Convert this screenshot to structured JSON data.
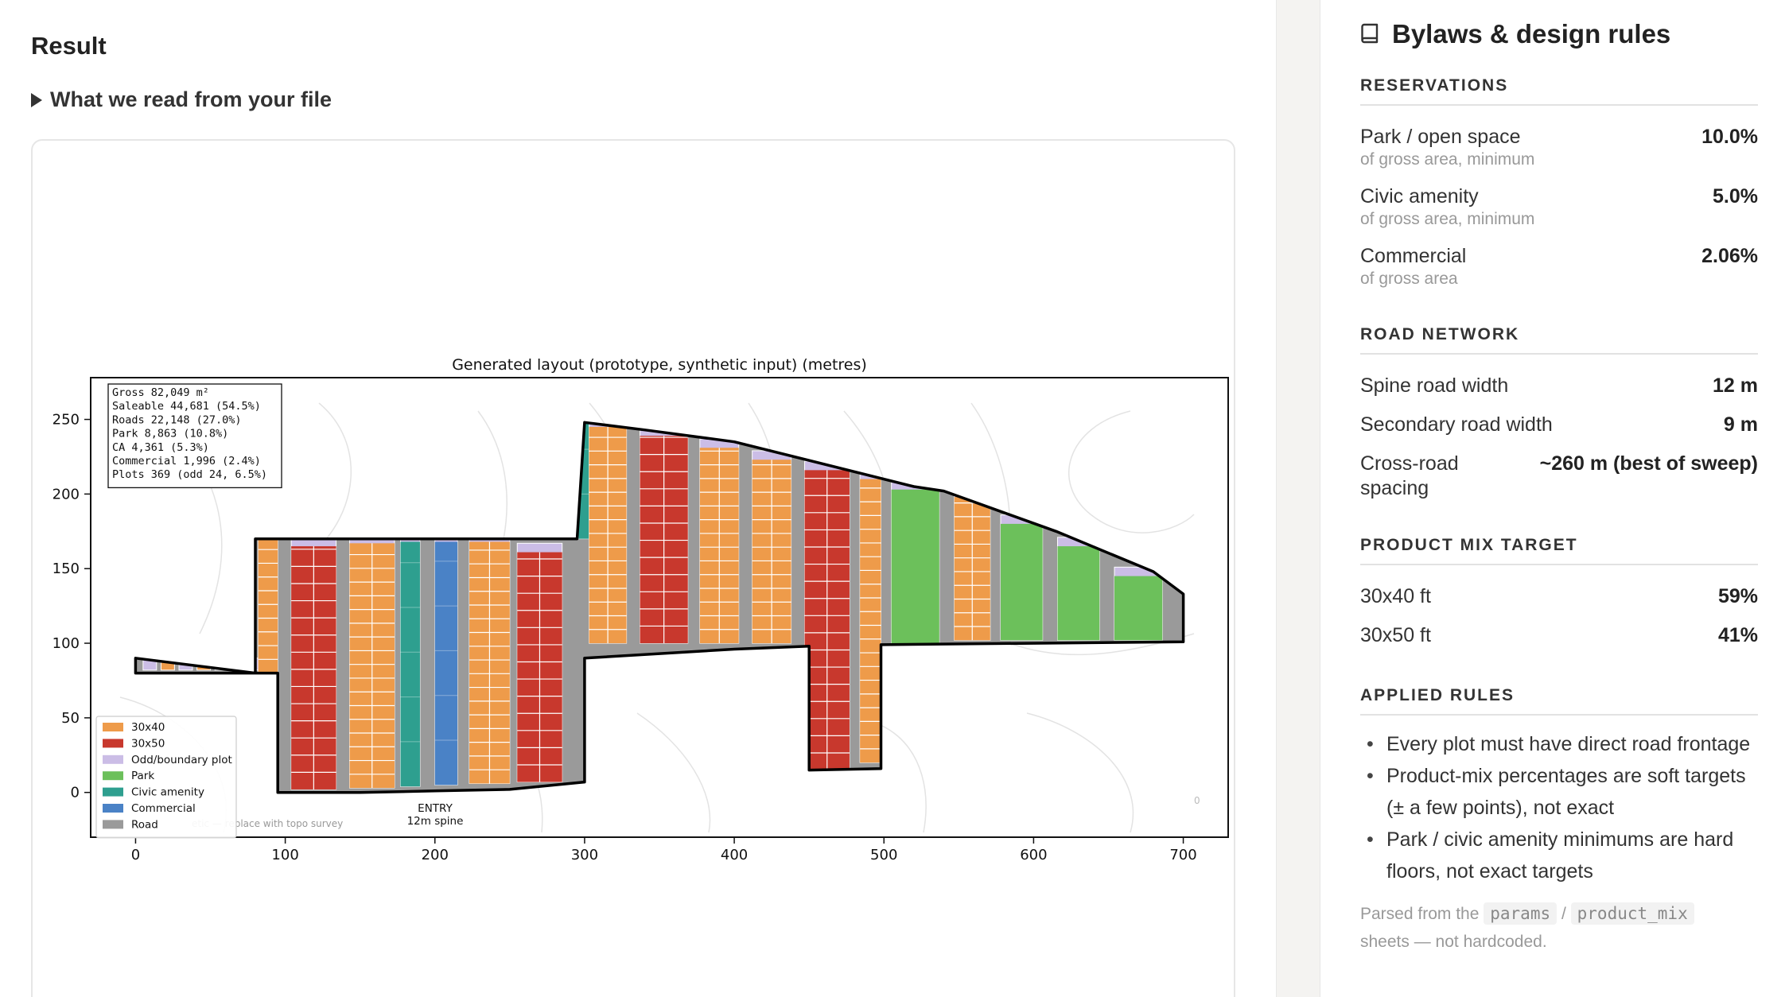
{
  "main": {
    "title": "Result",
    "expander_label": "What we read from your file"
  },
  "figure": {
    "title": "Generated layout (prototype, synthetic input)  (metres)",
    "stats": [
      "Gross 82,049 m²",
      "Saleable 44,681 (54.5%)",
      "Roads 22,148 (27.0%)",
      "Park 8,863 (10.8%)",
      "CA 4,361 (5.3%)",
      "Commercial 1,996 (2.4%)",
      "Plots 369 (odd 24, 6.5%)"
    ],
    "legend": [
      {
        "label": "30x40",
        "color": "#ee9b4a"
      },
      {
        "label": "30x50",
        "color": "#c8382d"
      },
      {
        "label": "Odd/boundary plot",
        "color": "#cbbde6"
      },
      {
        "label": "Park",
        "color": "#6cc05b"
      },
      {
        "label": "Civic amenity",
        "color": "#2e9f8f"
      },
      {
        "label": "Commercial",
        "color": "#4a82c6"
      },
      {
        "label": "Road",
        "color": "#9a9a9a"
      }
    ],
    "entry_label": [
      "ENTRY",
      "12m spine"
    ],
    "contour_note": "etic — replace with topo survey",
    "contour_tick": "0"
  },
  "chart_data": {
    "type": "map",
    "title": "Generated layout (prototype, synthetic input)  (metres)",
    "xlim": [
      -30,
      730
    ],
    "ylim": [
      -30,
      278
    ],
    "xticks": [
      0,
      100,
      200,
      300,
      400,
      500,
      600,
      700
    ],
    "yticks": [
      0,
      50,
      100,
      150,
      200,
      250
    ],
    "boundary": [
      [
        0,
        90
      ],
      [
        0,
        80
      ],
      [
        95,
        80
      ],
      [
        95,
        0
      ],
      [
        150,
        0
      ],
      [
        200,
        1
      ],
      [
        250,
        2
      ],
      [
        300,
        7
      ],
      [
        300,
        90
      ],
      [
        400,
        96
      ],
      [
        450,
        98
      ],
      [
        450,
        15
      ],
      [
        498,
        16
      ],
      [
        498,
        99
      ],
      [
        700,
        101
      ],
      [
        700,
        133
      ],
      [
        680,
        148
      ],
      [
        615,
        175
      ],
      [
        540,
        202
      ],
      [
        520,
        205
      ],
      [
        400,
        235
      ],
      [
        340,
        243
      ],
      [
        300,
        248
      ],
      [
        295,
        170
      ],
      [
        80,
        170
      ],
      [
        80,
        80
      ],
      [
        0,
        90
      ]
    ],
    "strips": [
      {
        "x": 82,
        "w": 13,
        "y0": 80,
        "y1": 170,
        "type": "30x40"
      },
      {
        "x": 104,
        "w": 30,
        "y0": 2,
        "y1": 165,
        "type": "30x50"
      },
      {
        "x": 143,
        "w": 30,
        "y0": 3,
        "y1": 167,
        "type": "30x40"
      },
      {
        "x": 177,
        "w": 13,
        "y0": 4,
        "y1": 168,
        "type": "civic"
      },
      {
        "x": 200,
        "w": 15,
        "y0": 5,
        "y1": 168,
        "type": "commercial"
      },
      {
        "x": 223,
        "w": 27,
        "y0": 6,
        "y1": 168,
        "type": "30x40"
      },
      {
        "x": 255,
        "w": 30,
        "y0": 7,
        "y1": 161,
        "type": "30x50"
      },
      {
        "x": 296,
        "w": 10,
        "y0": 170,
        "y1": 248,
        "type": "civic"
      },
      {
        "x": 303,
        "w": 25,
        "y0": 100,
        "y1": 245,
        "type": "30x40"
      },
      {
        "x": 337,
        "w": 32,
        "y0": 100,
        "y1": 239,
        "type": "30x50"
      },
      {
        "x": 377,
        "w": 26,
        "y0": 100,
        "y1": 231,
        "type": "30x40"
      },
      {
        "x": 412,
        "w": 26,
        "y0": 100,
        "y1": 223,
        "type": "30x40"
      },
      {
        "x": 447,
        "w": 30,
        "y0": 15,
        "y1": 216,
        "type": "30x50"
      },
      {
        "x": 484,
        "w": 14,
        "y0": 20,
        "y1": 210,
        "type": "30x40"
      },
      {
        "x": 505,
        "w": 32,
        "y0": 100,
        "y1": 203,
        "type": "park"
      },
      {
        "x": 547,
        "w": 24,
        "y0": 102,
        "y1": 198,
        "type": "30x40"
      },
      {
        "x": 578,
        "w": 28,
        "y0": 102,
        "y1": 180,
        "type": "park"
      },
      {
        "x": 616,
        "w": 28,
        "y0": 102,
        "y1": 165,
        "type": "park"
      },
      {
        "x": 654,
        "w": 32,
        "y0": 102,
        "y1": 145,
        "type": "park"
      }
    ]
  },
  "sidebar": {
    "title": "Bylaws & design rules",
    "sections": {
      "reservations": {
        "heading": "RESERVATIONS",
        "rows": [
          {
            "label": "Park / open space",
            "sub": "of gross area, minimum",
            "value": "10.0%"
          },
          {
            "label": "Civic amenity",
            "sub": "of gross area, minimum",
            "value": "5.0%"
          },
          {
            "label": "Commercial",
            "sub": "of gross area",
            "value": "2.06%"
          }
        ]
      },
      "road_network": {
        "heading": "ROAD NETWORK",
        "rows": [
          {
            "label": "Spine road width",
            "value": "12 m"
          },
          {
            "label": "Secondary road width",
            "value": "9 m"
          },
          {
            "label": "Cross-road spacing",
            "value": "~260 m (best of sweep)"
          }
        ]
      },
      "product_mix": {
        "heading": "PRODUCT MIX TARGET",
        "rows": [
          {
            "label": "30x40 ft",
            "value": "59%"
          },
          {
            "label": "30x50 ft",
            "value": "41%"
          }
        ]
      },
      "applied_rules": {
        "heading": "APPLIED RULES",
        "items": [
          "Every plot must have direct road frontage",
          "Product-mix percentages are soft targets (± a few points), not exact",
          "Park / civic amenity minimums are hard floors, not exact targets"
        ]
      }
    },
    "footer": {
      "prefix": "Parsed from the",
      "code1": "params",
      "slash": "/",
      "code2": "product_mix",
      "suffix": "sheets — not hardcoded."
    }
  }
}
